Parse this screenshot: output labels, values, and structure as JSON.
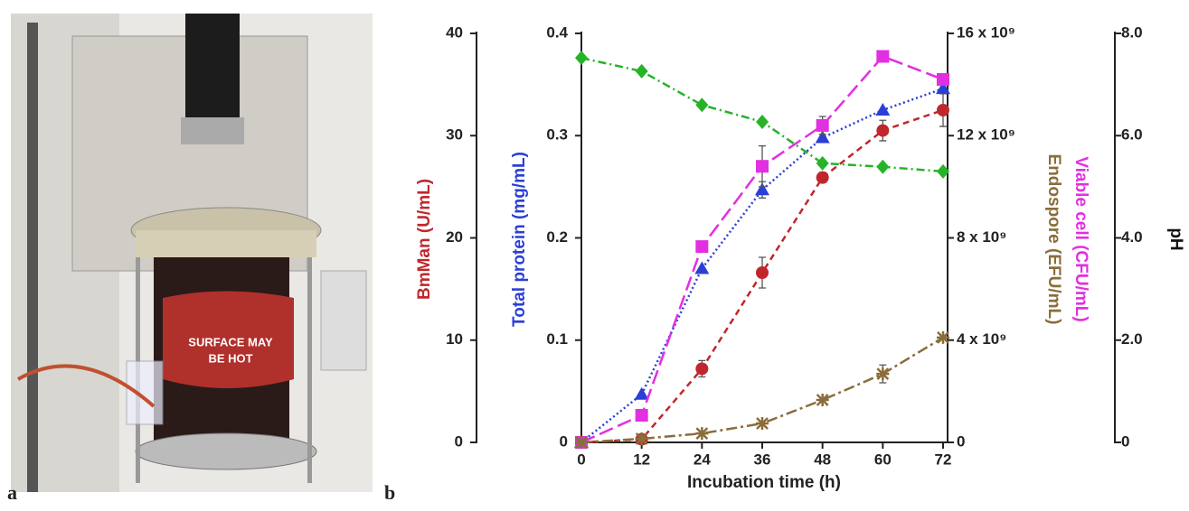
{
  "panel_labels": [
    "a",
    "b"
  ],
  "chart_data": {
    "type": "line",
    "x_label": "Incubation time (h)",
    "x": [
      0,
      12,
      24,
      36,
      48,
      60,
      72
    ],
    "xlim": [
      0,
      72
    ],
    "xticks": [
      0,
      12,
      24,
      36,
      48,
      60,
      72
    ],
    "ylim": [
      0,
      40
    ],
    "yticks": [
      0,
      10,
      20,
      30,
      40
    ],
    "y2lim": [
      0,
      0.4
    ],
    "y2ticks": [
      0,
      0.1,
      0.2,
      0.3,
      0.4
    ],
    "y3lim": [
      0,
      16000000000
    ],
    "y3ticks": [
      0,
      {
        "value": 4000000000,
        "label": "4 x 10⁹"
      },
      {
        "value": 8000000000,
        "label": "8 x 10⁹"
      },
      {
        "value": 12000000000,
        "label": "12 x 10⁹"
      },
      {
        "value": 16000000000,
        "label": "16 x 10⁹"
      }
    ],
    "y4lim": [
      0,
      8
    ],
    "y4ticks": [
      0,
      {
        "value": 2,
        "label": "2.0"
      },
      {
        "value": 4,
        "label": "4.0"
      },
      {
        "value": 6,
        "label": "6.0"
      },
      {
        "value": 8,
        "label": "8.0"
      }
    ],
    "series": [
      {
        "name": "BmMan (U/mL)",
        "color": "#c0272d",
        "axis": "y",
        "marker": "circle",
        "dash": "7,5",
        "values": [
          0,
          0.3,
          7.2,
          16.6,
          25.9,
          30.5,
          32.5
        ],
        "errors": [
          null,
          null,
          0.8,
          1.5,
          0.5,
          1,
          1.6
        ]
      },
      {
        "name": "Total protein (mg/mL)",
        "color": "#2b3fd6",
        "axis": "y2",
        "marker": "triangle",
        "dash": "2,3",
        "values": [
          0,
          0.047,
          0.17,
          0.247,
          0.298,
          0.325,
          0.346
        ],
        "errors": [
          null,
          null,
          null,
          0.008,
          null,
          null,
          null
        ]
      },
      {
        "name": "Viable cell (CFU/mL)",
        "color": "#e22fe0",
        "axis": "y3",
        "marker": "square",
        "dash": "16,6",
        "values": [
          0,
          1060000000,
          7660000000,
          10800000000,
          12400000000,
          15100000000,
          14200000000
        ],
        "errors": [
          null,
          null,
          null,
          800000000,
          350000000,
          null,
          null
        ]
      },
      {
        "name": "Endospore (EFU/mL)",
        "color": "#8a6d3b",
        "axis": "y3",
        "marker": "star",
        "dash": "12,4,3,4",
        "values": [
          0,
          140000000,
          350000000,
          740000000,
          1660000000,
          2680000000,
          4100000000
        ],
        "errors": [
          null,
          null,
          null,
          null,
          null,
          350000000,
          null
        ]
      },
      {
        "name": "pH",
        "color": "#27b327",
        "axis": "y4",
        "marker": "diamond",
        "dash": "9,4,2,4",
        "values": [
          7.52,
          7.26,
          6.6,
          6.27,
          5.46,
          5.39,
          5.3
        ]
      }
    ]
  }
}
